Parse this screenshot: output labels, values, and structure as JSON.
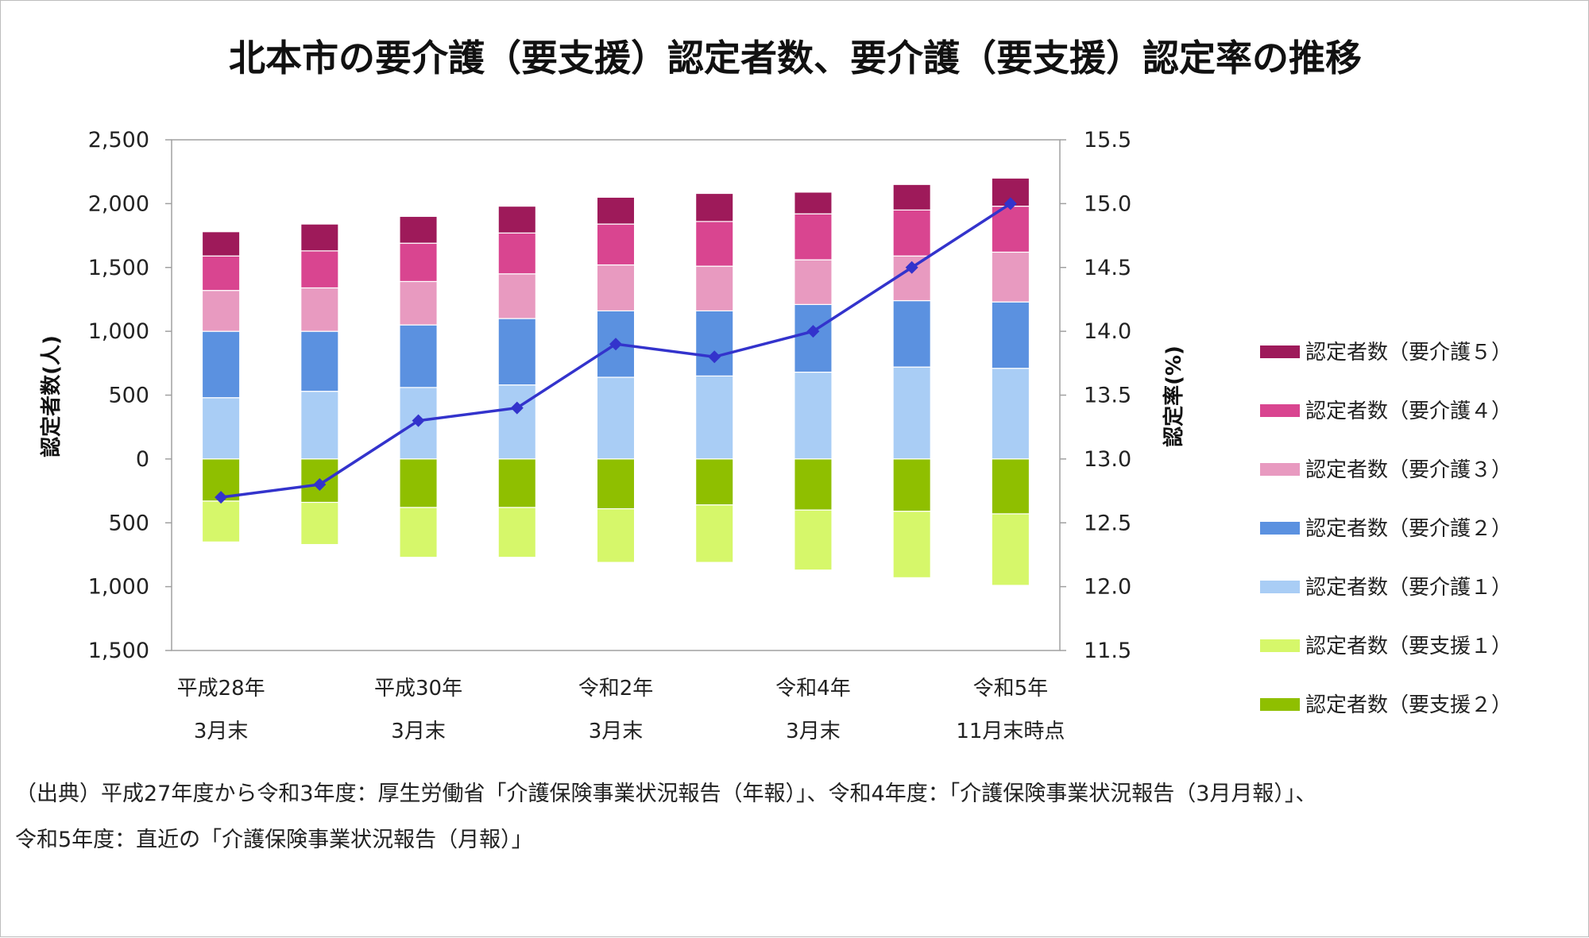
{
  "chart_data": {
    "type": "bar",
    "title": "北本市の要介護（要支援）認定者数、要介護（要支援）認定率の推移",
    "categories": [
      [
        "平成28年",
        "3月末"
      ],
      [
        "",
        ""
      ],
      [
        "平成30年",
        "3月末"
      ],
      [
        "",
        ""
      ],
      [
        "令和2年",
        "3月末"
      ],
      [
        "",
        ""
      ],
      [
        "令和4年",
        "3月末"
      ],
      [
        "",
        ""
      ],
      [
        "令和5年",
        "11月末時点"
      ]
    ],
    "y_left": {
      "label": "認定者数(人)",
      "ylim": [
        -1500,
        2500
      ],
      "ticks": [
        2500,
        2000,
        1500,
        1000,
        500,
        0,
        -500,
        -1000,
        -1500
      ],
      "tick_labels": [
        "2,500",
        "2,000",
        "1,500",
        "1,000",
        "500",
        "0",
        "500",
        "1,000",
        "1,500"
      ]
    },
    "y_right": {
      "label": "認定率(%)",
      "ylim": [
        11.5,
        15.5
      ],
      "ticks": [
        15.5,
        15.0,
        14.5,
        14.0,
        13.5,
        13.0,
        12.5,
        12.0,
        11.5
      ],
      "tick_labels": [
        "15.5",
        "15.0",
        "14.5",
        "14.0",
        "13.5",
        "13.0",
        "12.5",
        "12.0",
        "11.5"
      ]
    },
    "series": [
      {
        "name": "認定者数（要介護１）",
        "color": "#a9cdf5",
        "direction": "up",
        "values": [
          480,
          530,
          560,
          580,
          640,
          650,
          680,
          720,
          710
        ]
      },
      {
        "name": "認定者数（要介護２）",
        "color": "#5b91e0",
        "direction": "up",
        "values": [
          520,
          470,
          490,
          520,
          520,
          510,
          530,
          520,
          520
        ]
      },
      {
        "name": "認定者数（要介護３）",
        "color": "#e89ac0",
        "direction": "up",
        "values": [
          320,
          340,
          340,
          350,
          360,
          350,
          350,
          350,
          390
        ]
      },
      {
        "name": "認定者数（要介護４）",
        "color": "#d94590",
        "direction": "up",
        "values": [
          270,
          290,
          300,
          320,
          320,
          350,
          360,
          360,
          360
        ]
      },
      {
        "name": "認定者数（要介護５）",
        "color": "#9e1a5a",
        "direction": "up",
        "values": [
          190,
          210,
          210,
          210,
          210,
          220,
          170,
          200,
          220
        ]
      },
      {
        "name": "認定者数（要支援２）",
        "color": "#8fbf00",
        "direction": "down",
        "values": [
          330,
          340,
          380,
          380,
          390,
          360,
          400,
          410,
          430
        ]
      },
      {
        "name": "認定者数（要支援１）",
        "color": "#d6f76a",
        "direction": "down",
        "values": [
          320,
          330,
          390,
          390,
          420,
          450,
          470,
          520,
          560
        ]
      },
      {
        "name": "認定率",
        "color": "#3333cc",
        "type": "line",
        "axis": "right",
        "values": [
          12.7,
          12.8,
          13.3,
          13.4,
          13.9,
          13.8,
          14.0,
          14.5,
          15.0
        ]
      }
    ],
    "legend": {
      "placement": "right",
      "items": [
        {
          "label": "認定者数（要介護５）",
          "color": "#9e1a5a"
        },
        {
          "label": "認定者数（要介護４）",
          "color": "#d94590"
        },
        {
          "label": "認定者数（要介護３）",
          "color": "#e89ac0"
        },
        {
          "label": "認定者数（要介護２）",
          "color": "#5b91e0"
        },
        {
          "label": "認定者数（要介護１）",
          "color": "#a9cdf5"
        },
        {
          "label": "認定者数（要支援１）",
          "color": "#d6f76a"
        },
        {
          "label": "認定者数（要支援２）",
          "color": "#8fbf00"
        }
      ]
    },
    "grid": false
  },
  "source": {
    "line1": "（出典）平成27年度から令和3年度：厚生労働省「介護保険事業状況報告（年報）」、令和4年度：「介護保険事業状況報告（3月月報）」、",
    "line2": "令和5年度：直近の「介護保険事業状況報告（月報）」"
  }
}
